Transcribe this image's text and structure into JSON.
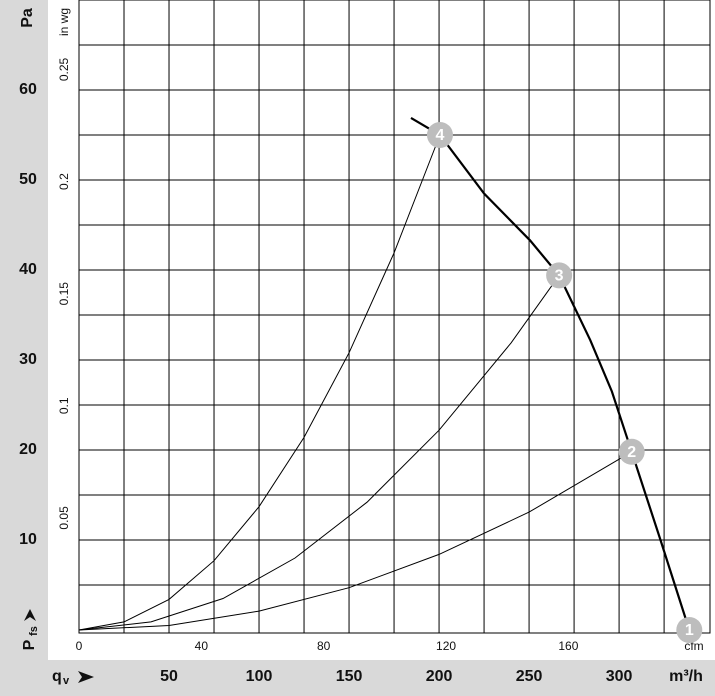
{
  "chart_data": {
    "type": "line",
    "y_label": "Pa",
    "y2_label": "in wg",
    "x_label": "m³/h",
    "x2_label": "cfm",
    "pressure_symbol": {
      "main": "P",
      "sub": "fs"
    },
    "flow_symbol": {
      "main": "q",
      "sub": "v"
    },
    "xlim": [
      0,
      350.5
    ],
    "ylim": [
      0,
      70
    ],
    "x2lim": [
      0,
      206.3
    ],
    "y2lim": [
      0,
      0.281
    ],
    "xticks": [
      50,
      100,
      150,
      200,
      250,
      300
    ],
    "yticks": [
      10,
      20,
      30,
      40,
      50,
      60
    ],
    "x2ticks": [
      0,
      40,
      80,
      120,
      160
    ],
    "y2ticks": [
      0.05,
      0.1,
      0.15,
      0.2,
      0.25
    ],
    "xgrid": [
      25,
      50,
      75,
      100,
      125,
      150,
      175,
      200,
      225,
      250,
      275,
      300,
      325
    ],
    "ygrid": [
      5,
      10,
      15,
      20,
      25,
      30,
      35,
      40,
      45,
      50,
      55,
      60,
      65
    ],
    "grid": true,
    "series": [
      {
        "color": "#000000",
        "x": [
          184.4,
          200.5,
          225,
          250.5,
          266.7,
          284,
          296,
          307,
          323,
          339
        ],
        "values": [
          56.9,
          55,
          48.5,
          43.3,
          39.4,
          32.2,
          26.5,
          19.8,
          10,
          0
        ]
      },
      {
        "color": "#000000",
        "x": [
          0,
          25,
          50,
          75,
          100,
          125,
          150,
          175,
          200.5
        ],
        "values": [
          0,
          0.9,
          3.4,
          7.7,
          13.7,
          21.4,
          30.8,
          41.9,
          55
        ]
      },
      {
        "color": "#000000",
        "x": [
          0,
          40,
          80,
          120,
          160,
          200,
          240,
          266.7
        ],
        "values": [
          0,
          0.9,
          3.5,
          8,
          14.2,
          22.2,
          31.9,
          39.4
        ]
      },
      {
        "color": "#000000",
        "x": [
          0,
          50,
          100,
          150,
          200,
          250,
          307
        ],
        "values": [
          0,
          0.5,
          2.1,
          4.7,
          8.4,
          13.1,
          19.8
        ]
      }
    ],
    "operating_points": [
      {
        "label": "1",
        "x": 339,
        "y": 0
      },
      {
        "label": "2",
        "x": 307,
        "y": 19.8
      },
      {
        "label": "3",
        "x": 266.7,
        "y": 39.4
      },
      {
        "label": "4",
        "x": 200.5,
        "y": 55
      }
    ]
  }
}
